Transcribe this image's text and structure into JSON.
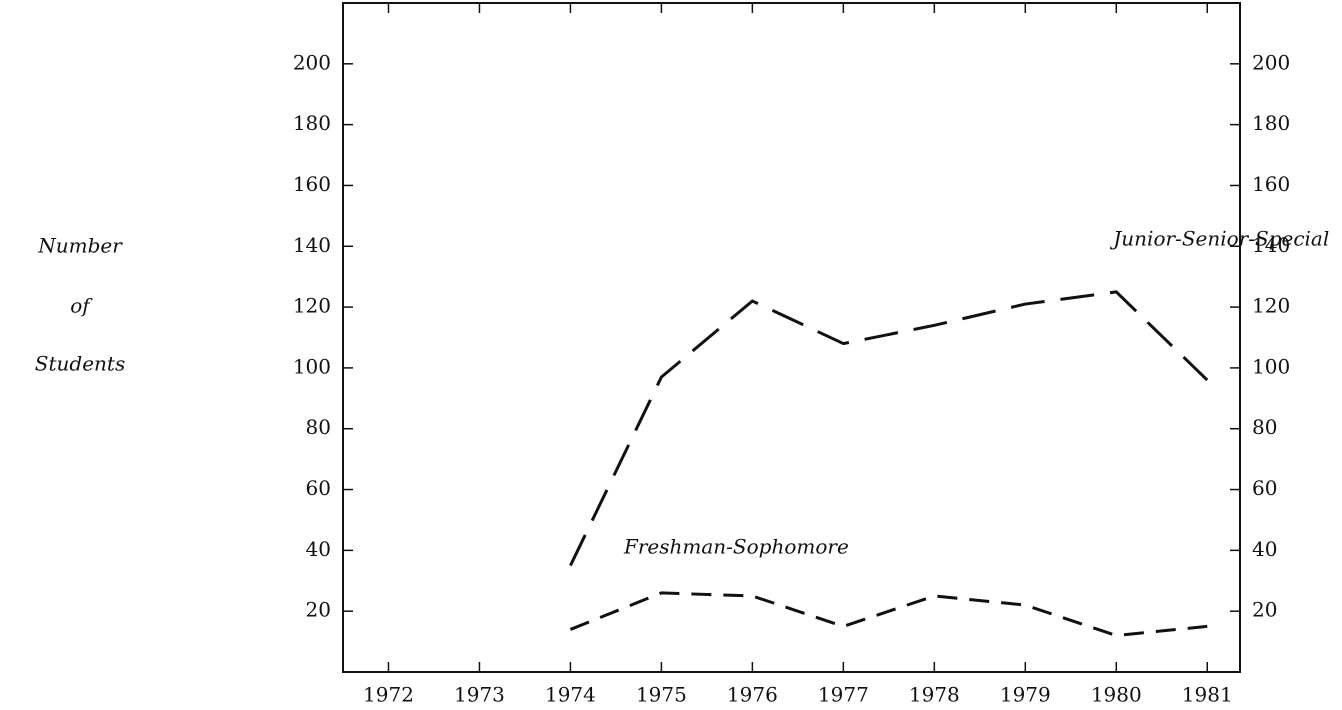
{
  "chart_data": {
    "type": "line",
    "ylabel_lines": [
      "Number",
      "of",
      "Students"
    ],
    "x": [
      1974,
      1975,
      1976,
      1977,
      1978,
      1979,
      1980,
      1981
    ],
    "series": [
      {
        "name": "Junior-Senior-Special",
        "color": "#111111",
        "values": [
          35,
          97,
          122,
          108,
          114,
          121,
          125,
          96
        ]
      },
      {
        "name": "Freshman-Sophomore",
        "color": "#111111",
        "values": [
          14,
          26,
          25,
          15,
          25,
          22,
          12,
          15
        ]
      }
    ],
    "xlim": [
      1971.5,
      1981.36
    ],
    "xticks": [
      1972,
      1973,
      1974,
      1975,
      1976,
      1977,
      1978,
      1979,
      1980,
      1981
    ],
    "ylim": [
      0,
      220
    ],
    "yticks": [
      20,
      40,
      60,
      80,
      100,
      120,
      140,
      160,
      180,
      200
    ],
    "right_axis": true,
    "grid": false
  }
}
